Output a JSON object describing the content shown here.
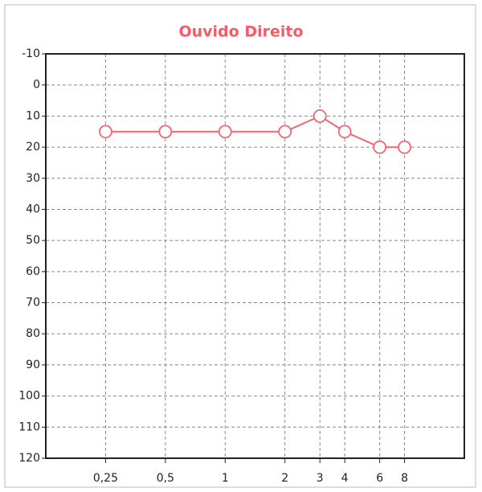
{
  "chart_data": {
    "type": "line",
    "title": "Ouvido Direito",
    "x": [
      0.25,
      0.5,
      1,
      2,
      3,
      4,
      6,
      8
    ],
    "values": [
      15,
      15,
      15,
      15,
      10,
      15,
      20,
      20
    ],
    "color": "#f26572",
    "marker_fill": "#ffffff",
    "title_color": "#f55a66",
    "xlim": [
      0.125,
      16
    ],
    "xscale": "log",
    "xticks": [
      {
        "value": 0.25,
        "label": "0,25"
      },
      {
        "value": 0.5,
        "label": "0,5"
      },
      1,
      2,
      3,
      4,
      6,
      8
    ],
    "ylim": [
      -10,
      120
    ],
    "y_inverted": true,
    "yticks": [
      -10,
      0,
      10,
      20,
      30,
      40,
      50,
      60,
      70,
      80,
      90,
      100,
      110,
      120
    ],
    "grid": true
  }
}
